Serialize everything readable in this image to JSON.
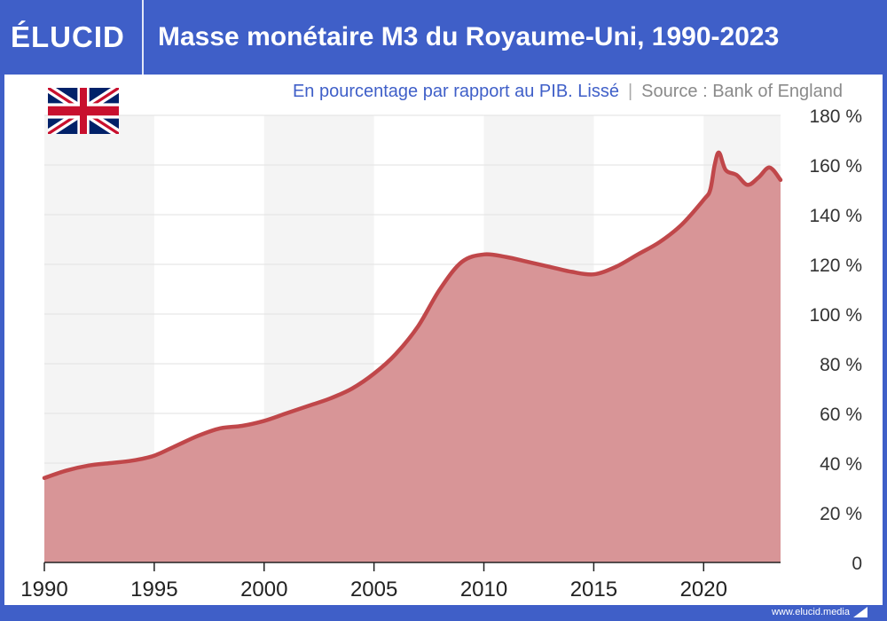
{
  "header": {
    "logo": "ÉLUCID",
    "title": "Masse monétaire M3 du Royaume-Uni, 1990-2023"
  },
  "subtitle": {
    "main": "En pourcentage par rapport au PIB. Lissé",
    "separator": "|",
    "source": "Source : Bank of England"
  },
  "footer": {
    "url": "www.elucid.media"
  },
  "colors": {
    "brand": "#3f5fc8",
    "line": "#c0474a",
    "area": "#d89597",
    "band": "#f4f4f4",
    "grid": "#e2e2e2"
  },
  "icons": {
    "flag": "uk-flag-icon"
  },
  "chart_data": {
    "type": "area",
    "title": "Masse monétaire M3 du Royaume-Uni, 1990-2023",
    "subtitle": "En pourcentage par rapport au PIB. Lissé",
    "xlabel": "",
    "ylabel": "",
    "xlim": [
      1990,
      2023.5
    ],
    "ylim": [
      0,
      180
    ],
    "x_ticks": [
      1990,
      1995,
      2000,
      2005,
      2010,
      2015,
      2020
    ],
    "x_tick_labels": [
      "1990",
      "1995",
      "2000",
      "2005",
      "2010",
      "2015",
      "2020"
    ],
    "y_ticks": [
      0,
      20,
      40,
      60,
      80,
      100,
      120,
      140,
      160,
      180
    ],
    "y_tick_labels": [
      "0",
      "20 %",
      "40 %",
      "60 %",
      "80 %",
      "100 %",
      "120 %",
      "140 %",
      "160 %",
      "180 %"
    ],
    "y_axis_side": "right",
    "grid": true,
    "alternating_bands": true,
    "series": [
      {
        "x": [
          1990,
          1991,
          1992,
          1993,
          1994,
          1995,
          1996,
          1997,
          1998,
          1999,
          2000,
          2001,
          2002,
          2003,
          2004,
          2005,
          2006,
          2007,
          2008,
          2009,
          2010,
          2011,
          2012,
          2013,
          2014,
          2015,
          2016,
          2017,
          2018,
          2019,
          2020,
          2020.3,
          2020.5,
          2020.7,
          2021,
          2021.5,
          2022,
          2022.5,
          2023,
          2023.5
        ],
        "y": [
          34,
          37,
          39,
          40,
          41,
          43,
          47,
          51,
          54,
          55,
          57,
          60,
          63,
          66,
          70,
          76,
          84,
          95,
          110,
          121,
          124,
          123,
          121,
          119,
          117,
          116,
          119,
          124,
          129,
          136,
          146,
          150,
          160,
          165,
          158,
          156,
          152,
          155,
          159,
          154
        ]
      }
    ]
  }
}
